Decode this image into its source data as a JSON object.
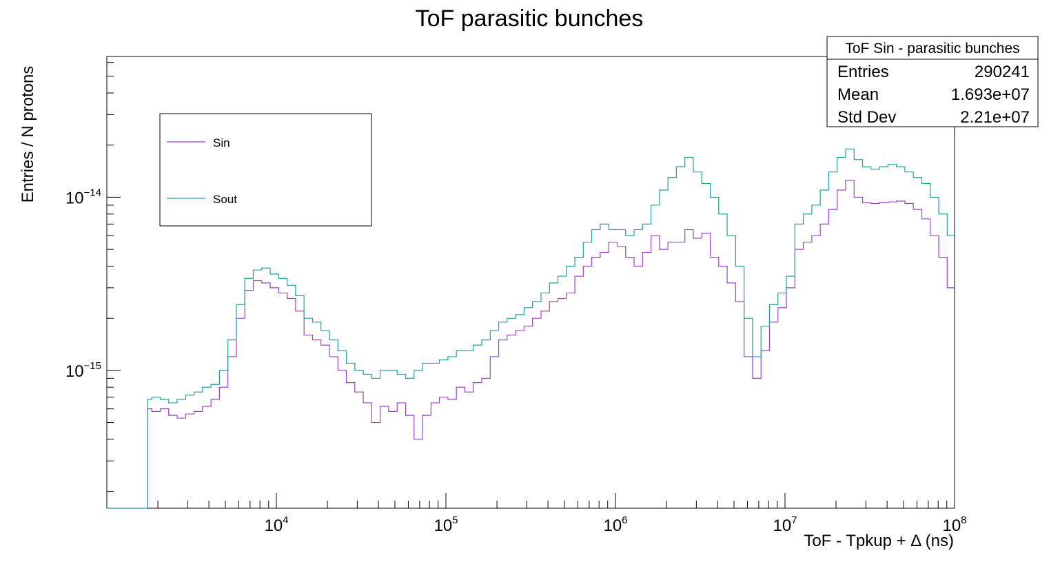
{
  "chart_data": {
    "type": "line",
    "title": "ToF parasitic bunches",
    "xlabel": "ToF - Tpkup + Δ (ns)",
    "ylabel": "Entries / N protons",
    "xscale": "log",
    "yscale": "log",
    "xlim": [
      1000,
      100000000
    ],
    "ylim": [
      1.6e-16,
      6.5e-14
    ],
    "x_tick_labels": [
      {
        "value": 10000,
        "base": "10",
        "exp": "4"
      },
      {
        "value": 100000,
        "base": "10",
        "exp": "5"
      },
      {
        "value": 1000000,
        "base": "10",
        "exp": "6"
      },
      {
        "value": 10000000,
        "base": "10",
        "exp": "7"
      },
      {
        "value": 100000000,
        "base": "10",
        "exp": "8"
      }
    ],
    "y_tick_labels": [
      {
        "value": 1e-15,
        "base": "10",
        "exp": "−15"
      },
      {
        "value": 1e-14,
        "base": "10",
        "exp": "−14"
      }
    ],
    "grid": false,
    "legend_position": "top-left",
    "series": [
      {
        "name": "Sin",
        "color": "#a040d0",
        "x": [
          1738,
          1950,
          2187,
          2453,
          2752,
          3087,
          3463,
          3885,
          4358,
          4888,
          5484,
          6151,
          6900,
          7741,
          8683,
          9741,
          10927,
          12257,
          13750,
          15425,
          17303,
          19410,
          21774,
          24425,
          27400,
          30737,
          34480,
          38680,
          43390,
          48675,
          54604,
          61254,
          68714,
          77083,
          86472,
          97003,
          108817,
          122070,
          136937,
          153615,
          172325,
          193313,
          216857,
          243268,
          272897,
          306134,
          343419,
          385245,
          432165,
          484800,
          543846,
          610084,
          684388,
          767742,
          861248,
          966143,
          1083814,
          1215817,
          1363896,
          1530009,
          1716352,
          1925391,
          2159889,
          2422947,
          2718045,
          3049086,
          3420445,
          3837034,
          4304357,
          4828596,
          5416681,
          6076392,
          6816451,
          7646644,
          8577948,
          9622678,
          10794606,
          12109310,
          13584198,
          15238659,
          17094575,
          19176629,
          21512257,
          24132334,
          27071523,
          30368696,
          34067317,
          38216476,
          42870986,
          48092389,
          53949700,
          60520395,
          67891298,
          76160009,
          85435808,
          95840318
        ],
        "values": [
          6e-16,
          5.8e-16,
          6e-16,
          5.5e-16,
          5.3e-16,
          5.6e-16,
          5.8e-16,
          6.2e-16,
          6.8e-16,
          8e-16,
          1.2e-15,
          2e-15,
          2.9e-15,
          3.3e-15,
          3.2e-15,
          3e-15,
          2.8e-15,
          2.6e-15,
          2.2e-15,
          1.6e-15,
          1.5e-15,
          1.4e-15,
          1.2e-15,
          1e-15,
          8.5e-16,
          7.5e-16,
          6.5e-16,
          5e-16,
          6.2e-16,
          5.8e-16,
          6.5e-16,
          5.5e-16,
          4e-16,
          5.5e-16,
          6.5e-16,
          7e-16,
          6.8e-16,
          8e-16,
          7.5e-16,
          8.5e-16,
          9e-16,
          1.2e-15,
          1.5e-15,
          1.6e-15,
          1.7e-15,
          1.8e-15,
          2e-15,
          2.2e-15,
          2.5e-15,
          2.6e-15,
          2.8e-15,
          3.5e-15,
          4e-15,
          4.5e-15,
          4.8e-15,
          5.5e-15,
          5.2e-15,
          4.5e-15,
          4e-15,
          4.8e-15,
          6e-15,
          5e-15,
          5.5e-15,
          5.5e-15,
          6.5e-15,
          5.8e-15,
          6.2e-15,
          4.5e-15,
          4e-15,
          3.2e-15,
          2.5e-15,
          1.2e-15,
          9e-16,
          1.3e-15,
          1.9e-15,
          2.3e-15,
          3e-15,
          5e-15,
          5.5e-15,
          6e-15,
          7e-15,
          8.5e-15,
          1.1e-14,
          1.25e-14,
          1e-14,
          9.3e-15,
          9.2e-15,
          9.3e-15,
          9.4e-15,
          9.5e-15,
          9.2e-15,
          8.5e-15,
          7.5e-15,
          6e-15,
          4.5e-15,
          3e-15
        ]
      },
      {
        "name": "Sout",
        "color": "#20a0a0",
        "x": [
          1738,
          1950,
          2187,
          2453,
          2752,
          3087,
          3463,
          3885,
          4358,
          4888,
          5484,
          6151,
          6900,
          7741,
          8683,
          9741,
          10927,
          12257,
          13750,
          15425,
          17303,
          19410,
          21774,
          24425,
          27400,
          30737,
          34480,
          38680,
          43390,
          48675,
          54604,
          61254,
          68714,
          77083,
          86472,
          97003,
          108817,
          122070,
          136937,
          153615,
          172325,
          193313,
          216857,
          243268,
          272897,
          306134,
          343419,
          385245,
          432165,
          484800,
          543846,
          610084,
          684388,
          767742,
          861248,
          966143,
          1083814,
          1215817,
          1363896,
          1530009,
          1716352,
          1925391,
          2159889,
          2422947,
          2718045,
          3049086,
          3420445,
          3837034,
          4304357,
          4828596,
          5416681,
          6076392,
          6816451,
          7646644,
          8577948,
          9622678,
          10794606,
          12109310,
          13584198,
          15238659,
          17094575,
          19176629,
          21512257,
          24132334,
          27071523,
          30368696,
          34067317,
          38216476,
          42870986,
          48092389,
          53949700,
          60520395,
          67891298,
          76160009,
          85435808,
          95840318
        ],
        "values": [
          6.8e-16,
          7e-16,
          6.8e-16,
          6.5e-16,
          6.8e-16,
          7.2e-16,
          7.5e-16,
          8e-16,
          8.3e-16,
          1e-15,
          1.5e-15,
          2.4e-15,
          3.4e-15,
          3.8e-15,
          3.9e-15,
          3.6e-15,
          3.4e-15,
          3.1e-15,
          2.7e-15,
          2e-15,
          1.9e-15,
          1.7e-15,
          1.5e-15,
          1.3e-15,
          1.1e-15,
          1e-15,
          9.5e-16,
          9e-16,
          1e-15,
          1e-15,
          9.5e-16,
          9e-16,
          1e-15,
          1.1e-15,
          1.1e-15,
          1.15e-15,
          1.2e-15,
          1.3e-15,
          1.3e-15,
          1.4e-15,
          1.5e-15,
          1.7e-15,
          1.9e-15,
          2e-15,
          2.1e-15,
          2.3e-15,
          2.5e-15,
          2.8e-15,
          3.2e-15,
          3.5e-15,
          4e-15,
          4.5e-15,
          5.5e-15,
          6.5e-15,
          7e-15,
          6.5e-15,
          6.5e-15,
          6e-15,
          6.5e-15,
          7e-15,
          9e-15,
          1.1e-14,
          1.3e-14,
          1.5e-14,
          1.7e-14,
          1.4e-14,
          1.2e-14,
          1e-14,
          8e-15,
          6e-15,
          4e-15,
          2e-15,
          1.2e-15,
          1.8e-15,
          2.4e-15,
          2.8e-15,
          3.5e-15,
          7e-15,
          8e-15,
          9e-15,
          1.1e-14,
          1.4e-14,
          1.7e-14,
          1.9e-14,
          1.65e-14,
          1.5e-14,
          1.45e-14,
          1.5e-14,
          1.55e-14,
          1.5e-14,
          1.4e-14,
          1.3e-14,
          1.2e-14,
          1e-14,
          8e-15,
          6e-15
        ]
      }
    ],
    "stats": {
      "title": "ToF Sin - parasitic bunches",
      "rows": [
        {
          "label": "Entries",
          "value": "290241"
        },
        {
          "label": "Mean",
          "value": "1.693e+07"
        },
        {
          "label": "Std Dev",
          "value": "2.21e+07"
        }
      ]
    }
  }
}
